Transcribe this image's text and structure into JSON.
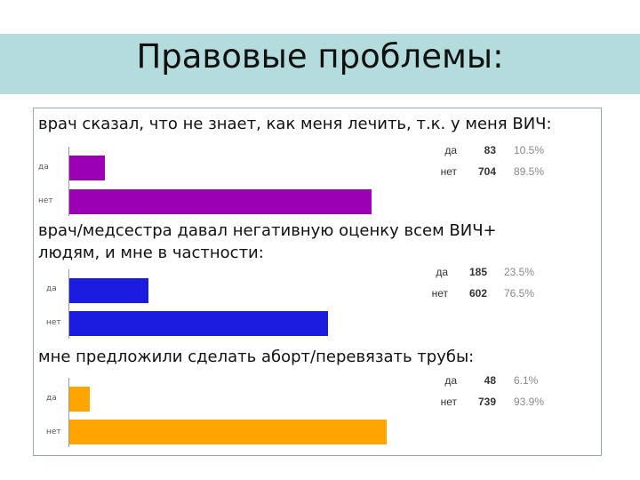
{
  "title": "Правовые проблемы:",
  "chart_data": [
    {
      "type": "bar",
      "title": "врач сказал, что не знает, как меня лечить, т.к. у меня ВИЧ:",
      "categories": [
        "да",
        "нет"
      ],
      "values": [
        83,
        704
      ],
      "percents": [
        "10.5%",
        "89.5%"
      ],
      "color": "#9b00b5"
    },
    {
      "type": "bar",
      "title_lines": [
        "врач/медсестра давал негативную оценку  всем ВИЧ+",
        "людям, и мне в частности:"
      ],
      "categories": [
        "да",
        "нет"
      ],
      "values": [
        185,
        602
      ],
      "percents": [
        "23.5%",
        "76.5%"
      ],
      "color": "#1c1ce0"
    },
    {
      "type": "bar",
      "title": "мне предложили сделать аборт/перевязать трубы:",
      "categories": [
        "да",
        "нет"
      ],
      "values": [
        48,
        739
      ],
      "percents": [
        "6.1%",
        "93.9%"
      ],
      "color": "#ffa500"
    }
  ]
}
